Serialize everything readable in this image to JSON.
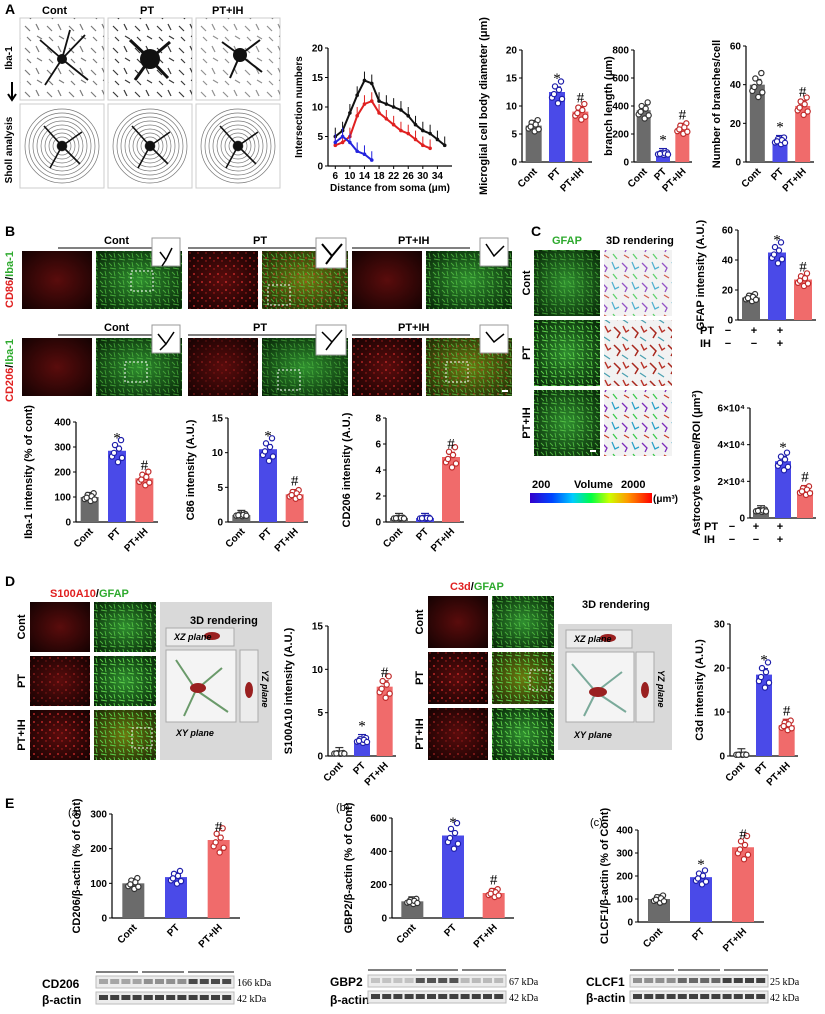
{
  "panels": {
    "A": {
      "letter": "A",
      "row_labels": [
        "Iba-1",
        "Sholl analysis"
      ],
      "columns": [
        "Cont",
        "PT",
        "PT+IH"
      ]
    },
    "B": {
      "letter": "B",
      "row_labels": [
        {
          "red": "CD86",
          "green": "Iba-1"
        },
        {
          "red": "CD206",
          "green": "Iba-1"
        }
      ],
      "columns": [
        "Cont",
        "PT",
        "PT+IH"
      ]
    },
    "C": {
      "letter": "C",
      "col_titles": [
        "GFAP",
        "3D rendering"
      ],
      "row_labels": [
        "Cont",
        "PT",
        "PT+IH"
      ],
      "colorbar": {
        "min": "200",
        "label": "Volume",
        "max": "2000",
        "unit": "(μm³)"
      },
      "table_rows": [
        {
          "label": "PT",
          "marks": [
            "−",
            "+",
            "+"
          ]
        },
        {
          "label": "IH",
          "marks": [
            "−",
            "−",
            "+"
          ]
        }
      ]
    },
    "D": {
      "letter": "D",
      "left": {
        "red": "S100A10",
        "green": "GFAP",
        "render_title": "3D rendering",
        "planes": [
          "XZ plane",
          "YZ plane",
          "XY plane"
        ]
      },
      "right": {
        "red": "C3d",
        "green": "GFAP",
        "render_title": "3D rendering",
        "planes": [
          "XZ plane",
          "YZ plane",
          "XY plane"
        ]
      },
      "row_labels": [
        "Cont",
        "PT",
        "PT+IH"
      ]
    },
    "E": {
      "letter": "E",
      "sublabels": [
        "(a)",
        "(b)",
        "(c)"
      ],
      "blots": [
        {
          "target": "CD206",
          "target_kda": "166 kDa",
          "loading": "β-actin",
          "loading_kda": "42 kDa"
        },
        {
          "target": "GBP2",
          "target_kda": "67 kDa",
          "loading": "β-actin",
          "loading_kda": "42 kDa"
        },
        {
          "target": "CLCF1",
          "target_kda": "25 kDa",
          "loading": "β-actin",
          "loading_kda": "42 kDa"
        }
      ]
    }
  },
  "chart_data": [
    {
      "id": "sholl",
      "type": "line",
      "xlabel": "Distance from soma (μm)",
      "ylabel": "Intersection numbers",
      "x_ticks": [
        "6",
        "10",
        "14",
        "18",
        "22",
        "26",
        "30",
        "34"
      ],
      "ylim": [
        0,
        20
      ],
      "y_ticks": [
        0,
        5,
        10,
        15,
        20
      ],
      "series": [
        {
          "color": "#111111",
          "x": [
            6,
            8,
            10,
            12,
            14,
            16,
            18,
            20,
            22,
            24,
            26,
            28,
            30,
            32,
            34,
            36
          ],
          "y": [
            5,
            6,
            9,
            12,
            14.5,
            14,
            11,
            10.5,
            10,
            9.5,
            8.5,
            7,
            6,
            5.5,
            4.5,
            3.5
          ]
        },
        {
          "color": "#e02020",
          "x": [
            6,
            8,
            10,
            12,
            14,
            16,
            18,
            20,
            22,
            24,
            26,
            28,
            30,
            32
          ],
          "y": [
            3.5,
            4,
            5,
            8.5,
            10.5,
            11,
            9,
            8,
            7,
            6,
            5.5,
            4.5,
            3.5,
            3
          ]
        },
        {
          "color": "#2222dd",
          "x": [
            6,
            8,
            10,
            12,
            14,
            16
          ],
          "y": [
            4,
            5,
            4,
            2.5,
            2,
            1
          ]
        }
      ]
    },
    {
      "id": "cell-body",
      "type": "bar",
      "ylabel": "Microglial cell body diameter (μm)",
      "categories": [
        "Cont",
        "PT",
        "PT+IH"
      ],
      "values": [
        6.5,
        12.5,
        9
      ],
      "ylim": [
        0,
        20
      ],
      "y_ticks": [
        0,
        5,
        10,
        15,
        20
      ],
      "marks": [
        "",
        "*",
        "#"
      ]
    },
    {
      "id": "branch-length",
      "type": "bar",
      "ylabel": "branch length (μm)",
      "categories": [
        "Cont",
        "PT",
        "PT+IH"
      ],
      "values": [
        370,
        60,
        240
      ],
      "ylim": [
        0,
        800
      ],
      "y_ticks": [
        0,
        200,
        400,
        600,
        800
      ],
      "marks": [
        "",
        "*",
        "#"
      ]
    },
    {
      "id": "branches",
      "type": "bar",
      "ylabel": "Number of branches/cell",
      "categories": [
        "Cont",
        "PT",
        "PT+IH"
      ],
      "values": [
        40,
        11,
        29
      ],
      "ylim": [
        0,
        60
      ],
      "y_ticks": [
        0,
        20,
        40,
        60
      ],
      "marks": [
        "",
        "*",
        "#"
      ]
    },
    {
      "id": "iba1",
      "type": "bar",
      "ylabel": "Iba-1 intensity (% of cont)",
      "categories": [
        "Cont",
        "PT",
        "PT+IH"
      ],
      "values": [
        100,
        285,
        175
      ],
      "ylim": [
        0,
        400
      ],
      "y_ticks": [
        0,
        100,
        200,
        300,
        400
      ],
      "marks": [
        "",
        "*",
        "#"
      ]
    },
    {
      "id": "c86",
      "type": "bar",
      "ylabel": "C86 intensity (A.U.)",
      "categories": [
        "Cont",
        "PT",
        "PT+IH"
      ],
      "values": [
        1,
        10.5,
        4
      ],
      "ylim": [
        0,
        15
      ],
      "y_ticks": [
        0,
        5,
        10,
        15
      ],
      "marks": [
        "",
        "*",
        "#"
      ]
    },
    {
      "id": "cd206",
      "type": "bar",
      "ylabel": "CD206 intensity (A.U.)",
      "categories": [
        "Cont",
        "PT",
        "PT+IH"
      ],
      "values": [
        0.3,
        0.3,
        5
      ],
      "ylim": [
        0,
        8
      ],
      "y_ticks": [
        0,
        2,
        4,
        6,
        8
      ],
      "marks": [
        "",
        "",
        "#"
      ]
    },
    {
      "id": "gfap",
      "type": "bar",
      "ylabel": "GFAP intensity (A.U.)",
      "categories": [
        "",
        "",
        ""
      ],
      "values": [
        15,
        45,
        27
      ],
      "ylim": [
        0,
        60
      ],
      "y_ticks": [
        0,
        20,
        40,
        60
      ],
      "marks": [
        "",
        "*",
        "#"
      ]
    },
    {
      "id": "astro-volume",
      "type": "bar",
      "ylabel": "Astrocyte volume/ROI (μm³)",
      "categories": [
        "",
        "",
        ""
      ],
      "values": [
        4000,
        31000,
        15000
      ],
      "ylim": [
        0,
        60000
      ],
      "y_ticks": [
        "0",
        "2×10⁴",
        "4×10⁴",
        "6×10⁴"
      ],
      "marks": [
        "",
        "*",
        "#"
      ]
    },
    {
      "id": "s100a10",
      "type": "bar",
      "ylabel": "S100A10 intensity (A.U.)",
      "categories": [
        "Cont",
        "PT",
        "PT+IH"
      ],
      "values": [
        0.3,
        1.8,
        8
      ],
      "ylim": [
        0,
        15
      ],
      "y_ticks": [
        0,
        5,
        10,
        15
      ],
      "marks": [
        "",
        "*",
        "#"
      ]
    },
    {
      "id": "c3d",
      "type": "bar",
      "ylabel": "C3d intensity (A.U.)",
      "categories": [
        "Cont",
        "PT",
        "PT+IH"
      ],
      "values": [
        0.3,
        18.5,
        7
      ],
      "ylim": [
        0,
        30
      ],
      "y_ticks": [
        0,
        10,
        20,
        30
      ],
      "marks": [
        "",
        "*",
        "#"
      ]
    },
    {
      "id": "cd206-blot",
      "type": "bar",
      "ylabel": "CD206/β-actin (% of Cont)",
      "categories": [
        "Cont",
        "PT",
        "PT+IH"
      ],
      "values": [
        100,
        118,
        225
      ],
      "ylim": [
        0,
        300
      ],
      "y_ticks": [
        0,
        100,
        200,
        300
      ],
      "marks": [
        "",
        "",
        "#"
      ]
    },
    {
      "id": "gbp2-blot",
      "type": "bar",
      "ylabel": "GBP2/β-actin (% of Cont)",
      "categories": [
        "Cont",
        "PT",
        "PT+IH"
      ],
      "values": [
        100,
        495,
        150
      ],
      "ylim": [
        0,
        600
      ],
      "y_ticks": [
        0,
        200,
        400,
        600
      ],
      "marks": [
        "",
        "*",
        "#"
      ]
    },
    {
      "id": "clcf1-blot",
      "type": "bar",
      "ylabel": "CLCF1/β-actin (% of Cont)",
      "categories": [
        "Cont",
        "PT",
        "PT+IH"
      ],
      "values": [
        100,
        195,
        325
      ],
      "ylim": [
        0,
        400
      ],
      "y_ticks": [
        0,
        100,
        200,
        300,
        400
      ],
      "marks": [
        "",
        "*",
        "#"
      ]
    }
  ],
  "colors": {
    "cont": "#6b6b6b",
    "pt": "#4a4ae8",
    "ptih": "#f06b6b",
    "green": "#2eaa2e",
    "red": "#e02020"
  }
}
